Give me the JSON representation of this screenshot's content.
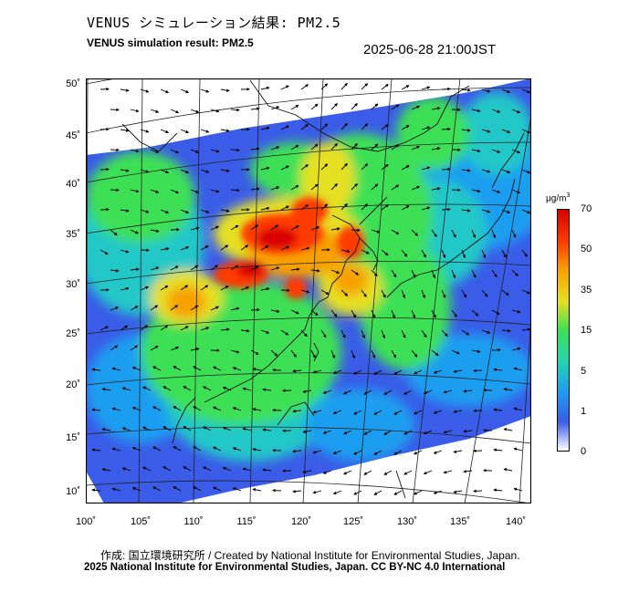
{
  "title_jp": "VENUS シミュレーション結果: PM2.5",
  "title_en": "VENUS simulation result: PM2.5",
  "timestamp": "2025-06-28 21:00JST",
  "map": {
    "lat_labels": [
      "50˚",
      "45˚",
      "40˚",
      "35˚",
      "30˚",
      "25˚",
      "20˚",
      "15˚",
      "10˚"
    ],
    "lon_labels": [
      "100˚",
      "105˚",
      "110˚",
      "115˚",
      "120˚",
      "125˚",
      "130˚",
      "135˚",
      "140˚"
    ],
    "lat_range": [
      9,
      51
    ],
    "lon_range": [
      100,
      142
    ],
    "layers": [
      "pm25-concentration",
      "wind-vectors",
      "coastlines",
      "graticule"
    ]
  },
  "colorbar": {
    "unit_base": "μg/m",
    "unit_exp": "3",
    "ticks": [
      "70",
      "50",
      "35",
      "15",
      "5",
      "1",
      "0"
    ],
    "colors": [
      "#ffffff",
      "#3a5ce8",
      "#1f9ef0",
      "#24d4b0",
      "#3ee055",
      "#e6e020",
      "#f7a000",
      "#ff3a00",
      "#d80000"
    ]
  },
  "credit": "作成: 国立環境研究所 / Created by National Institute for Environmental Studies, Japan.",
  "copyright": "2025 National Institute for Environmental Studies, Japan. CC BY-NC 4.0 International"
}
